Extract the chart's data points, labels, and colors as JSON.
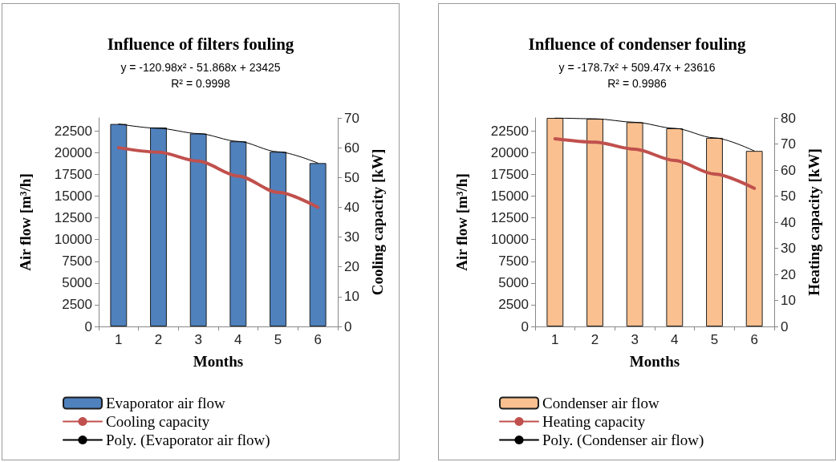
{
  "chart_data": [
    {
      "type": "bar",
      "title": "Influence of filters fouling",
      "annotations": [
        "y = -120.98x² - 51.868x + 23425",
        "R² = 0.9998"
      ],
      "categories": [
        "1",
        "2",
        "3",
        "4",
        "5",
        "6"
      ],
      "xlabel": "Months",
      "ylabel": "Air flow [m³/h]",
      "y2label": "Cooling capacity [kW]",
      "ylim": [
        0,
        24000
      ],
      "yticks": [
        0,
        2500,
        5000,
        7500,
        10000,
        12500,
        15000,
        17500,
        20000,
        22500
      ],
      "y2lim": [
        0,
        70
      ],
      "y2ticks": [
        0,
        10,
        20,
        30,
        40,
        50,
        60,
        70
      ],
      "legend": "bottom",
      "grid": false,
      "marker": "none",
      "series": [
        {
          "name": "Evaporator air flow",
          "color": "#4f81bd",
          "values": [
            23300,
            22900,
            22200,
            21300,
            20100,
            18800
          ]
        },
        {
          "name": "Cooling capacity",
          "type": "line",
          "axis": "y2",
          "color": "#c0504d",
          "values": [
            60,
            58.5,
            55.5,
            50.5,
            45,
            40
          ]
        },
        {
          "name": "Poly. (Evaporator air flow)",
          "type": "line",
          "color": "#000000",
          "values": [
            23300,
            22800,
            22200,
            21300,
            20100,
            18800
          ]
        }
      ]
    },
    {
      "type": "bar",
      "title": "Influence of condenser fouling",
      "annotations": [
        "y = -178.7x² + 509.47x + 23616",
        "R² = 0.9986"
      ],
      "categories": [
        "1",
        "2",
        "3",
        "4",
        "5",
        "6"
      ],
      "xlabel": "Months",
      "ylabel": "Air flow [m³/h]",
      "y2label": "Heating capacity [kW]",
      "ylim": [
        0,
        24000
      ],
      "yticks": [
        0,
        2500,
        5000,
        7500,
        10000,
        12500,
        15000,
        17500,
        20000,
        22500
      ],
      "y2lim": [
        0,
        80
      ],
      "y2ticks": [
        0,
        10,
        20,
        30,
        40,
        50,
        60,
        70,
        80
      ],
      "legend": "bottom",
      "grid": false,
      "marker": "none",
      "series": [
        {
          "name": "Condenser air flow",
          "color": "#fac090",
          "values": [
            24000,
            23900,
            23500,
            22800,
            21700,
            20200
          ]
        },
        {
          "name": "Heating capacity",
          "type": "line",
          "axis": "y2",
          "color": "#c0504d",
          "values": [
            72,
            70.7,
            68,
            63.7,
            58.5,
            53
          ]
        },
        {
          "name": "Poly. (Condenser air flow)",
          "type": "line",
          "color": "#000000",
          "values": [
            24000,
            23900,
            23500,
            22800,
            21700,
            20200
          ]
        }
      ]
    }
  ]
}
